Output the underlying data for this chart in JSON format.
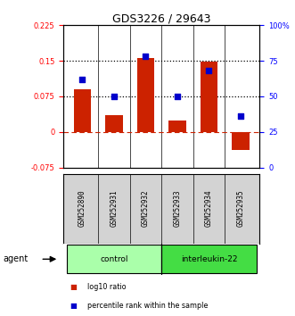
{
  "title": "GDS3226 / 29643",
  "samples": [
    "GSM252890",
    "GSM252931",
    "GSM252932",
    "GSM252933",
    "GSM252934",
    "GSM252935"
  ],
  "log10_ratio": [
    0.09,
    0.035,
    0.155,
    0.025,
    0.148,
    -0.038
  ],
  "percentile_rank_pct": [
    62,
    50,
    78,
    50,
    68,
    36
  ],
  "groups": [
    {
      "label": "control",
      "indices": [
        0,
        1,
        2
      ],
      "color": "#aaffaa",
      "edge_color": "#000000"
    },
    {
      "label": "interleukin-22",
      "indices": [
        3,
        4,
        5
      ],
      "color": "#44dd44",
      "edge_color": "#000000"
    }
  ],
  "bar_color": "#cc2200",
  "dot_color": "#0000cc",
  "ylim_left": [
    -0.075,
    0.225
  ],
  "ylim_right": [
    0,
    100
  ],
  "yticks_left": [
    -0.075,
    0,
    0.075,
    0.15,
    0.225
  ],
  "yticks_right": [
    0,
    25,
    50,
    75,
    100
  ],
  "hlines": [
    0.075,
    0.15
  ],
  "zero_line_color": "#cc2200",
  "background_color": "#ffffff",
  "sample_panel_color": "#d3d3d3",
  "bar_width": 0.55,
  "legend_items": [
    {
      "color": "#cc2200",
      "label": "log10 ratio"
    },
    {
      "color": "#0000cc",
      "label": "percentile rank within the sample"
    }
  ]
}
